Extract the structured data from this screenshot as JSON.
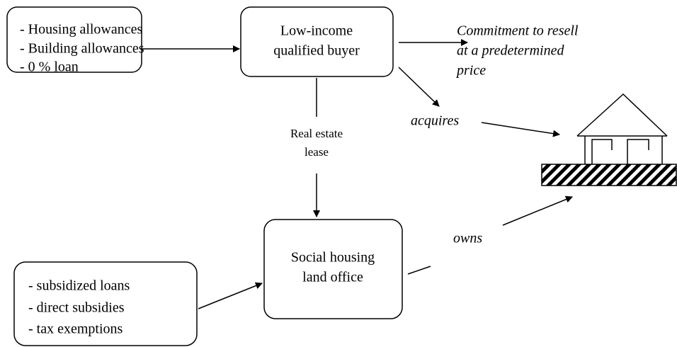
{
  "nodes": [
    {
      "lines": [
        "- Housing allowances",
        "- Building allowances",
        "- 0 % loan"
      ]
    },
    {
      "lines": [
        "Low-income",
        "qualified buyer"
      ]
    },
    {
      "lines": [
        "Social housing",
        "land office"
      ]
    },
    {
      "lines": [
        "- subsidized loans",
        "- direct subsidies",
        "- tax exemptions"
      ]
    }
  ],
  "labels": {
    "commitment": [
      "Commitment to resell",
      "at a predetermined",
      "price"
    ],
    "acquires": "acquires",
    "lease": [
      "Real estate",
      "lease"
    ],
    "owns": "owns"
  }
}
